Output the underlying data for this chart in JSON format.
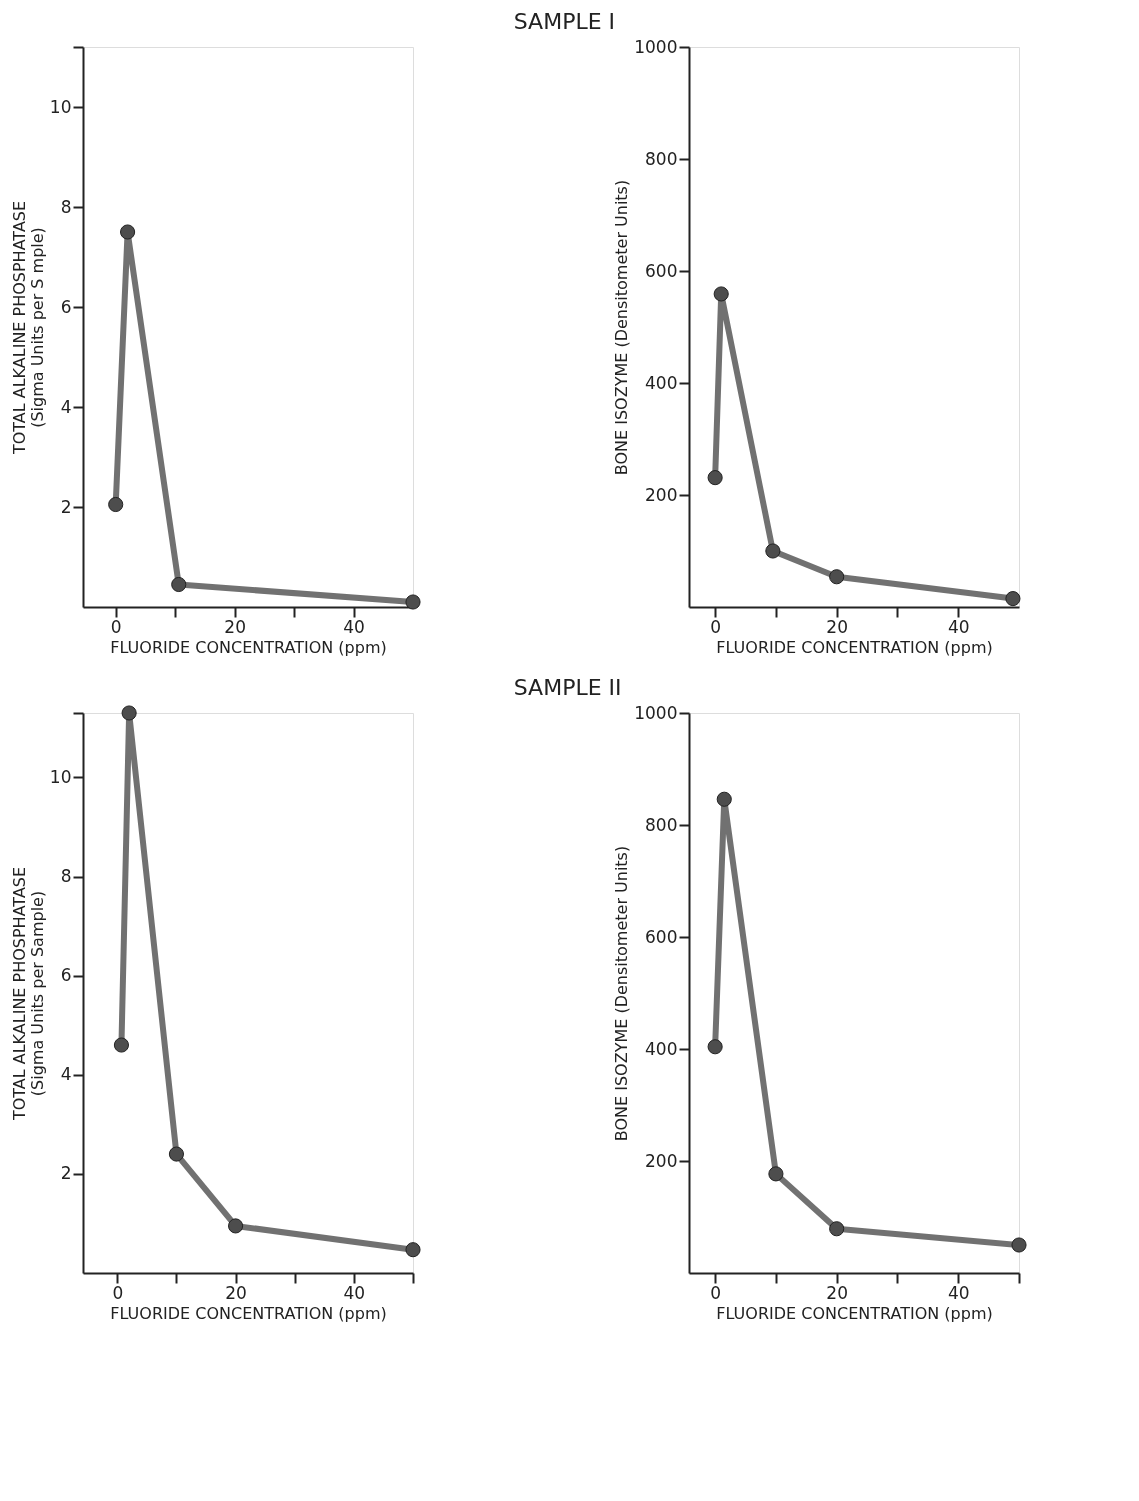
{
  "chart_data": [
    {
      "type": "line",
      "xlabel": "FLUORIDE CONCENTRATION (ppm)",
      "ylabel": [
        "TOTAL ALKALINE PHOSPHATASE",
        "(Sigma Units per S mple)"
      ],
      "grid": false,
      "marker": "circle",
      "line_style": "solid",
      "xlim": [
        -5.5,
        50
      ],
      "xticks": [
        0,
        {
          "value": 10,
          "label": null
        },
        20,
        {
          "value": 30,
          "label": null
        },
        40
      ],
      "ylim": [
        0,
        11.2
      ],
      "yticks": [
        2,
        4,
        6,
        8,
        10,
        {
          "value": 11.2,
          "label": null
        }
      ],
      "series": [
        {
          "color": "#4d4d4d",
          "x": [
            0,
            2,
            10.6,
            50
          ],
          "values": [
            2.05,
            7.5,
            0.45,
            0.1
          ]
        }
      ]
    },
    {
      "type": "line",
      "title": "SAMPLE I",
      "xlabel": "FLUORIDE CONCENTRATION (ppm)",
      "ylabel": "BONE ISOZYME (Densitometer Units)",
      "grid": false,
      "marker": "circle",
      "line_style": "solid",
      "xlim": [
        -4.3,
        50
      ],
      "xticks": [
        0,
        {
          "value": 10,
          "label": null
        },
        20,
        {
          "value": 30,
          "label": null
        },
        40
      ],
      "ylim": [
        0,
        1000
      ],
      "yticks": [
        200,
        400,
        600,
        800,
        1000
      ],
      "series": [
        {
          "color": "#4d4d4d",
          "x": [
            0,
            1,
            9.5,
            20,
            49
          ],
          "values": [
            231,
            559,
            100,
            54,
            15
          ]
        }
      ]
    },
    {
      "type": "line",
      "xlabel": "FLUORIDE CONCENTRATION (ppm)",
      "ylabel": [
        "TOTAL ALKALINE PHOSPHATASE",
        "(Sigma Units per Sample)"
      ],
      "grid": false,
      "marker": "circle",
      "line_style": "solid",
      "xlim": [
        -5.8,
        50
      ],
      "xticks": [
        0,
        {
          "value": 10,
          "label": null
        },
        20,
        {
          "value": 30,
          "label": null
        },
        40,
        {
          "value": 50,
          "label": null
        }
      ],
      "ylim": [
        0,
        11.3
      ],
      "yticks": [
        2,
        4,
        6,
        8,
        10,
        {
          "value": 11.3,
          "label": null
        }
      ],
      "series": [
        {
          "color": "#4d4d4d",
          "x": [
            0.7,
            2,
            10,
            20,
            50
          ],
          "values": [
            4.6,
            11.3,
            2.4,
            0.95,
            0.47
          ]
        }
      ]
    },
    {
      "type": "line",
      "title": "SAMPLE II",
      "xlabel": "FLUORIDE CONCENTRATION (ppm)",
      "ylabel": "BONE ISOZYME (Densitometer Units)",
      "grid": false,
      "marker": "circle",
      "line_style": "solid",
      "xlim": [
        -4.3,
        50
      ],
      "xticks": [
        0,
        {
          "value": 10,
          "label": null
        },
        20,
        {
          "value": 30,
          "label": null
        },
        40,
        {
          "value": 50,
          "label": null
        }
      ],
      "ylim": [
        0,
        1000
      ],
      "yticks": [
        200,
        400,
        600,
        800,
        1000
      ],
      "series": [
        {
          "color": "#4d4d4d",
          "x": [
            0,
            1.5,
            10,
            20,
            50
          ],
          "values": [
            404,
            846,
            177,
            79,
            50
          ]
        }
      ]
    }
  ]
}
